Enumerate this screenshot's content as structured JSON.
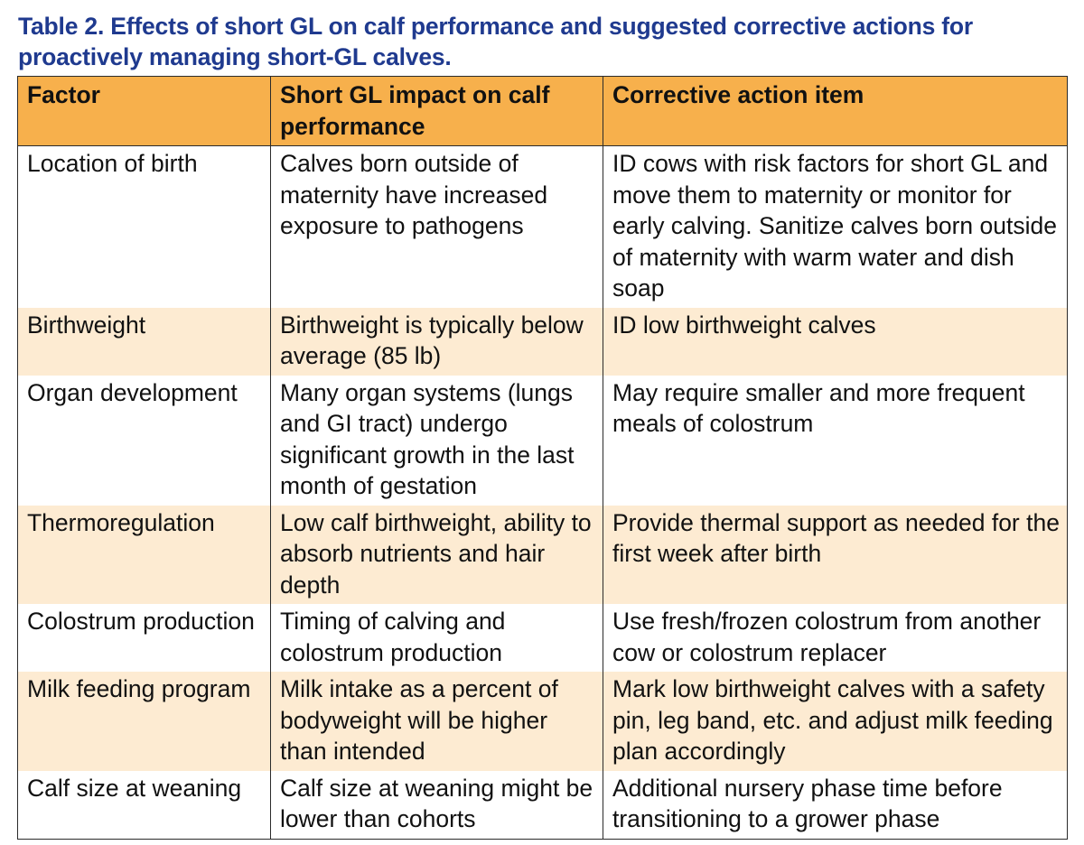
{
  "caption": "Table 2.  Effects of short GL on calf performance and suggested corrective actions for proactively managing short-GL calves.",
  "colors": {
    "caption": "#1f3a8f",
    "header_bg": "#f7b04c",
    "shaded_row_bg": "#fdebd2",
    "border": "#2b2b2b"
  },
  "table": {
    "headers": [
      "Factor",
      "Short GL impact on calf performance",
      "Corrective action item"
    ],
    "rows": [
      {
        "factor": "Location of birth",
        "impact": "Calves born outside of maternity have increased exposure to pathogens",
        "action": "ID cows with risk factors for short GL and move them to maternity or monitor for early calving.  Sanitize calves born outside of maternity with warm water and dish soap"
      },
      {
        "factor": "Birthweight",
        "impact": "Birthweight is typically below average (85 lb)",
        "action": "ID low birthweight calves"
      },
      {
        "factor": "Organ development",
        "impact": "Many organ systems (lungs and GI tract) undergo significant growth in the last month of gestation",
        "action": "May require smaller and more frequent meals of colostrum"
      },
      {
        "factor": "Thermoregulation",
        "impact": "Low calf birthweight, ability to absorb nutrients and hair depth",
        "action": "Provide thermal support as needed for the first week after birth"
      },
      {
        "factor": "Colostrum production",
        "impact": "Timing of calving and colostrum production",
        "action": "Use fresh/frozen colostrum from another cow or colostrum replacer"
      },
      {
        "factor": "Milk feeding program",
        "impact": "Milk intake as a percent of bodyweight will be higher than intended",
        "action": "Mark low birthweight calves with a safety pin, leg band, etc. and adjust milk feeding plan accordingly"
      },
      {
        "factor": "Calf size at weaning",
        "impact": "Calf size at weaning might be lower than cohorts",
        "action": "Additional nursery phase time before transitioning to a grower phase"
      }
    ]
  }
}
